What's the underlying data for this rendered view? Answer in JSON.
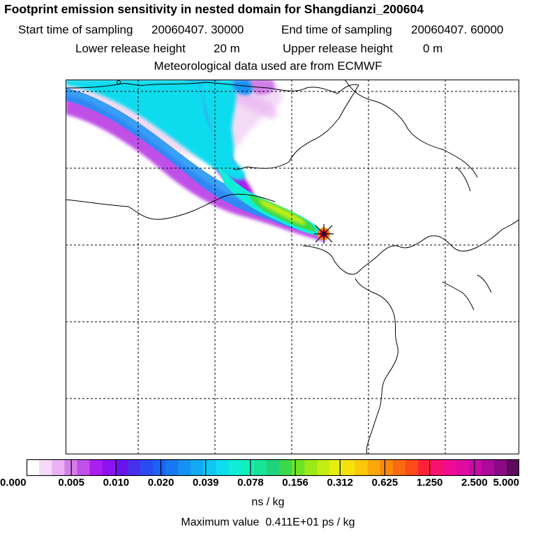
{
  "header": {
    "title": "Footprint emission sensitivity in nested domain for Shangdianzi_200604",
    "start_label": "Start time of sampling",
    "start_value": "20060407. 30000",
    "end_label": "End time of sampling",
    "end_value": "20060407. 60000",
    "lower_label": "Lower release height",
    "lower_value": "20 m",
    "upper_label": "Upper release height",
    "upper_value": "0 m",
    "met_line": "Meteorological data used are from ECMWF"
  },
  "legend": {
    "ticks": [
      "0.000",
      "0.005",
      "0.010",
      "0.020",
      "0.039",
      "0.078",
      "0.156",
      "0.312",
      "0.625",
      "1.250",
      "2.500",
      "5.000"
    ],
    "unit": "ns / kg",
    "colors": [
      "#ffffff",
      "#f6d8f8",
      "#eab2f2",
      "#d27ee8",
      "#c050e8",
      "#a820f0",
      "#8e12ee",
      "#6a14ee",
      "#4830ee",
      "#2a4cf2",
      "#1c62f4",
      "#1878f4",
      "#1692f4",
      "#14aaf4",
      "#10c6f2",
      "#10dcee",
      "#10eed8",
      "#10f0b8",
      "#18e498",
      "#20d27c",
      "#3cd84c",
      "#6ee424",
      "#9aea18",
      "#c4ee12",
      "#e6ee10",
      "#f6e00e",
      "#fcc80c",
      "#fca80c",
      "#fc8a0c",
      "#fc6a10",
      "#fc4a18",
      "#fc2038",
      "#f81070",
      "#f00c92",
      "#e00ca2",
      "#c80aa6",
      "#ac0a9a",
      "#8a0a84",
      "#5e0a5e"
    ]
  },
  "max_line": {
    "label": "Maximum value",
    "value": "0.411E+01 ps / kg"
  },
  "map": {
    "station_marker": "x-marker",
    "grid_style": "dashed"
  }
}
